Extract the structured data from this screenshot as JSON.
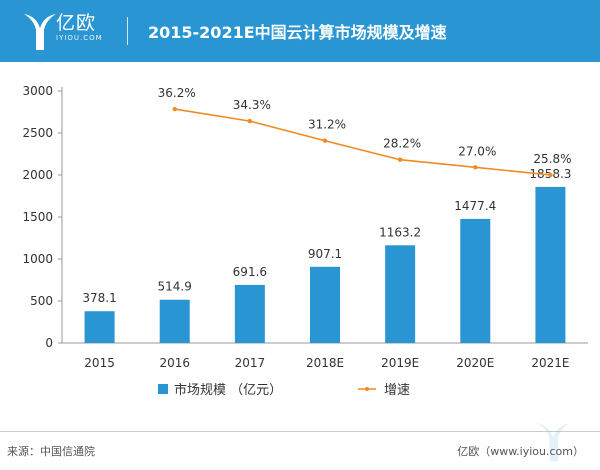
{
  "header": {
    "brand": "亿欧",
    "brand_url": "IYIOU.COM",
    "title": "2015-2021E中国云计算市场规模及增速"
  },
  "footer": {
    "source": "来源：中国信通院",
    "credit": "亿欧（www.iyiou.com）"
  },
  "colors": {
    "header_bg": "#2a95d3",
    "bar": "#2a95d3",
    "line": "#f08a24"
  },
  "chart_data": {
    "type": "bar",
    "categories": [
      "2015",
      "2016",
      "2017",
      "2018E",
      "2019E",
      "2020E",
      "2021E"
    ],
    "series": [
      {
        "name": "市场规模 （亿元）",
        "type": "bar",
        "values": [
          378.1,
          514.9,
          691.6,
          907.1,
          1163.2,
          1477.4,
          1858.3
        ],
        "labels": [
          "378.1",
          "514.9",
          "691.6",
          "907.1",
          "1163.2",
          "1477.4",
          "1858.3"
        ]
      },
      {
        "name": "增速",
        "type": "line",
        "values": [
          null,
          36.2,
          34.3,
          31.2,
          28.2,
          27.0,
          25.8
        ],
        "labels": [
          null,
          "36.2%",
          "34.3%",
          "31.2%",
          "28.2%",
          "27.0%",
          "25.8%"
        ]
      }
    ],
    "y_ticks": [
      "0",
      "500",
      "1000",
      "1500",
      "2000",
      "2500",
      "3000"
    ],
    "ylim": [
      0,
      3000
    ],
    "grid": false,
    "legend": "bottom"
  }
}
